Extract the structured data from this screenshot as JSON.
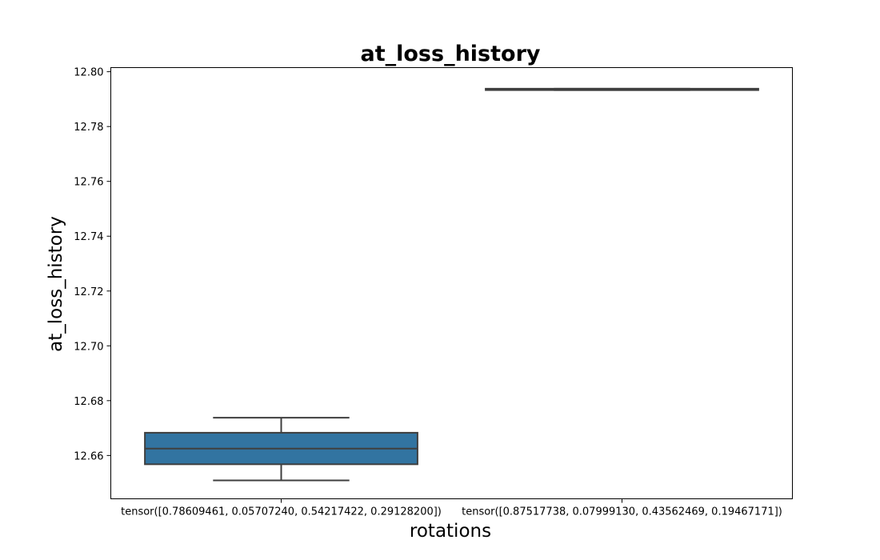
{
  "chart_data": {
    "type": "box",
    "title": "at_loss_history",
    "xlabel": "rotations",
    "ylabel": "at_loss_history",
    "categories": [
      "tensor([0.78609461, 0.05707240, 0.54217422, 0.29128200])",
      "tensor([0.87517738, 0.07999130, 0.43562469, 0.19467171])"
    ],
    "boxes": [
      {
        "whisker_low": 12.6509,
        "q1": 12.6568,
        "median": 12.6625,
        "q3": 12.6683,
        "whisker_high": 12.6738,
        "color": "#3274a1"
      },
      {
        "whisker_low": 12.7933,
        "q1": 12.7933,
        "median": 12.7935,
        "q3": 12.7938,
        "whisker_high": 12.7938,
        "color": "#e1812c"
      }
    ],
    "ylim": [
      12.6442,
      12.8015
    ],
    "yticks": [
      12.66,
      12.68,
      12.7,
      12.72,
      12.74,
      12.76,
      12.78,
      12.8
    ],
    "grid": false,
    "legend": "none"
  }
}
